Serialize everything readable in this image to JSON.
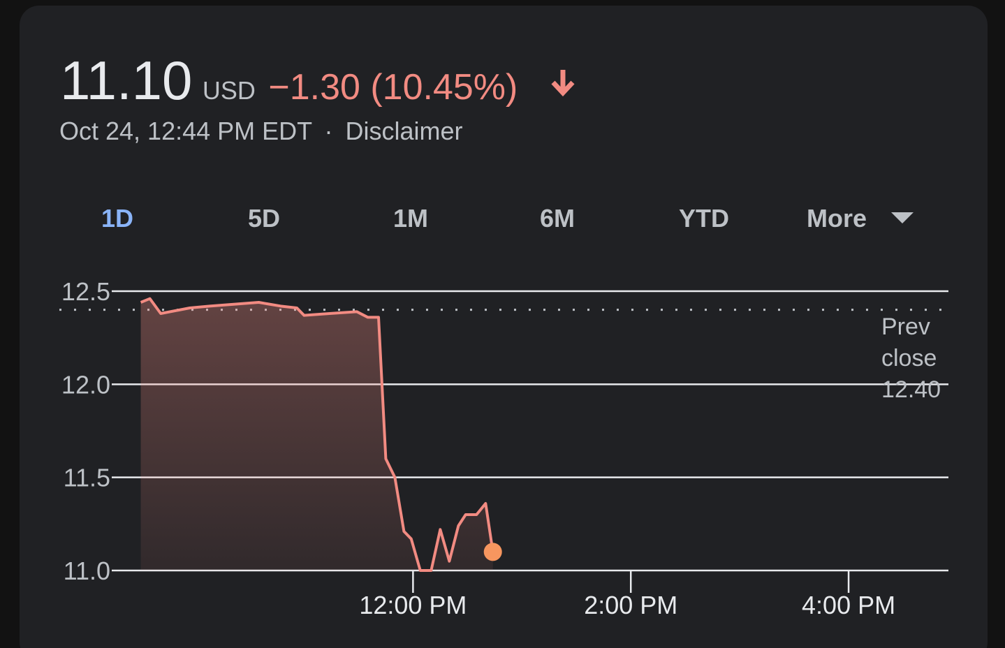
{
  "header": {
    "price": "11.10",
    "currency": "USD",
    "change": "−1.30 (10.45%)",
    "timestamp": "Oct 24, 12:44 PM EDT",
    "separator": "·",
    "disclaimer": "Disclaimer"
  },
  "tabs": [
    "1D",
    "5D",
    "1M",
    "6M",
    "YTD",
    "More"
  ],
  "chart_data": {
    "type": "line",
    "x": [
      570,
      575,
      581,
      597,
      608,
      635,
      647,
      656,
      660,
      674,
      689,
      695,
      701,
      705,
      710,
      715,
      719,
      724,
      730,
      735,
      740,
      745,
      749,
      755,
      760,
      764
    ],
    "values": [
      12.44,
      12.46,
      12.38,
      12.41,
      12.42,
      12.44,
      12.42,
      12.41,
      12.37,
      12.38,
      12.39,
      12.36,
      12.36,
      11.6,
      11.5,
      11.21,
      11.17,
      11.0,
      11.0,
      11.22,
      11.05,
      11.24,
      11.3,
      11.3,
      11.36,
      11.1
    ],
    "color": "#f28b82",
    "xlim": [
      554,
      1015
    ],
    "xticks": [
      {
        "value": 720,
        "label": "12:00 PM"
      },
      {
        "value": 840,
        "label": "2:00 PM"
      },
      {
        "value": 960,
        "label": "4:00 PM"
      }
    ],
    "ylim": [
      11.0,
      12.5
    ],
    "yticks": [
      12.5,
      {
        "value": 12,
        "label": "12.0"
      },
      11.5,
      {
        "value": 11,
        "label": "11.0"
      }
    ],
    "grid": true,
    "prev_close": {
      "label": "Prev close",
      "value": 12.4,
      "value_label": "12.40"
    }
  }
}
